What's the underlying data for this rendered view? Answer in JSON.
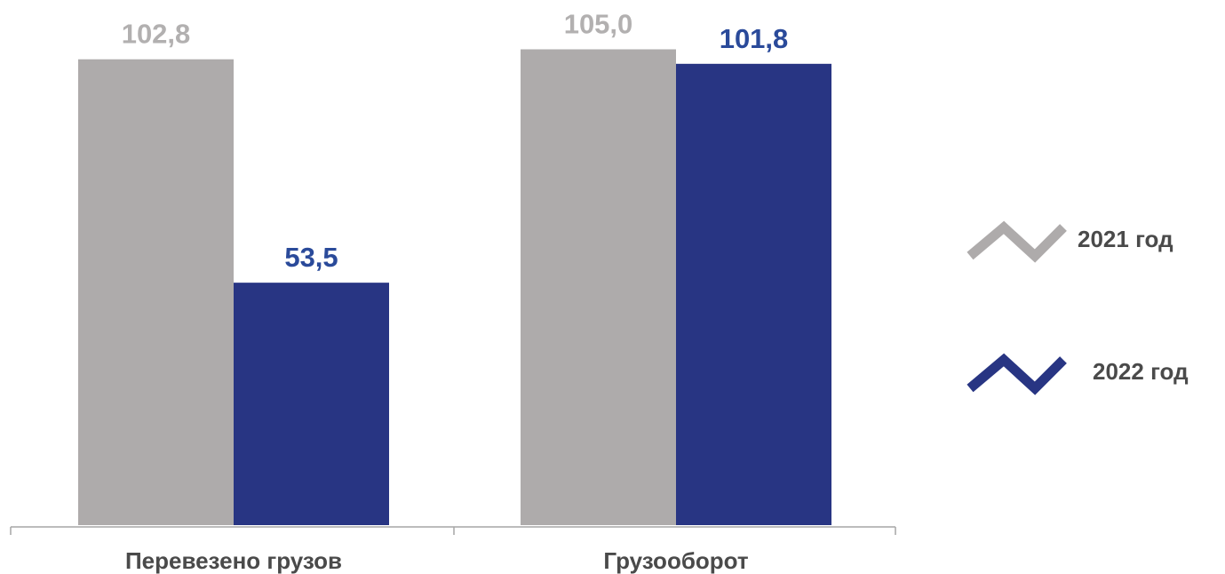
{
  "chart_data": {
    "type": "bar",
    "categories": [
      "Перевезено грузов",
      "Грузооборот"
    ],
    "series": [
      {
        "name": "2021 год",
        "values": [
          102.8,
          105.0
        ],
        "labels": [
          "102,8",
          "105,0"
        ],
        "color": "#aeabab"
      },
      {
        "name": "2022 год",
        "values": [
          53.5,
          101.8
        ],
        "labels": [
          "53,5",
          "101,8"
        ],
        "color": "#283583"
      }
    ],
    "title": "",
    "xlabel": "",
    "ylabel": "",
    "ylim": [
      0,
      110
    ],
    "grid": false,
    "legend_position": "right",
    "label_colors": [
      "#b2b0b0",
      "#2a4a9a"
    ]
  }
}
